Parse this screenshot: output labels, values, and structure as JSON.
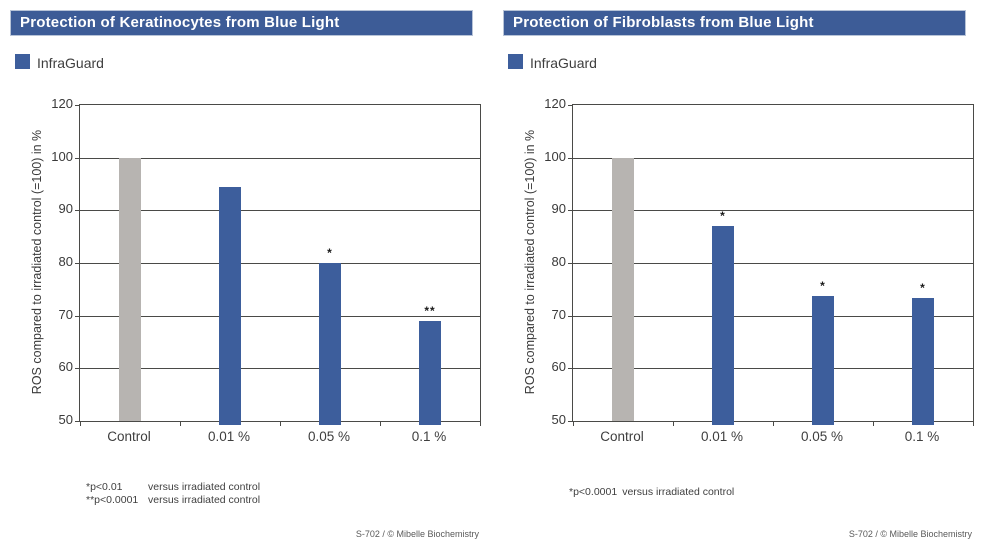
{
  "chart_data": [
    {
      "type": "bar",
      "title": "Protection of Keratinocytes from Blue Light",
      "legend": [
        {
          "label": "InfraGuard",
          "color": "#3d5e9c"
        }
      ],
      "ylabel": "ROS compared to irradiated control (=100) in %",
      "yticks": [
        120,
        100,
        90,
        80,
        70,
        60,
        50
      ],
      "ylim": [
        50,
        120
      ],
      "grid": true,
      "legend_position": "top-left",
      "categories": [
        "Control",
        "0.01 %",
        "0.05 %",
        "0.1 %"
      ],
      "values": [
        100,
        94.5,
        80,
        69
      ],
      "bar_colors": [
        "#b7b4b1",
        "#3d5e9c",
        "#3d5e9c",
        "#3d5e9c"
      ],
      "significance": [
        "",
        "",
        "*",
        "**"
      ],
      "footnotes": [
        {
          "marker": "*p<0.01",
          "text": "versus irradiated control"
        },
        {
          "marker": "**p<0.0001",
          "text": "versus irradiated control"
        }
      ],
      "attribution": "S-702 / © Mibelle Biochemistry"
    },
    {
      "type": "bar",
      "title": "Protection of Fibroblasts from Blue Light",
      "legend": [
        {
          "label": "InfraGuard",
          "color": "#3d5e9c"
        }
      ],
      "ylabel": "ROS compared to irradiated control (=100) in %",
      "yticks": [
        120,
        100,
        90,
        80,
        70,
        60,
        50
      ],
      "ylim": [
        50,
        120
      ],
      "grid": true,
      "legend_position": "top-left",
      "categories": [
        "Control",
        "0.01 %",
        "0.05 %",
        "0.1 %"
      ],
      "values": [
        100,
        87,
        73.8,
        73.4
      ],
      "bar_colors": [
        "#b7b4b1",
        "#3d5e9c",
        "#3d5e9c",
        "#3d5e9c"
      ],
      "significance": [
        "",
        "*",
        "*",
        "*"
      ],
      "footnotes": [
        {
          "marker": "*p<0.0001",
          "text": "versus irradiated control"
        }
      ],
      "attribution": "S-702 / © Mibelle Biochemistry"
    }
  ],
  "colors": {
    "header_blue": "#3d5c97",
    "bar_blue": "#3d5e9c",
    "bar_gray": "#b7b4b1",
    "grid_line": "#4a4a47"
  }
}
